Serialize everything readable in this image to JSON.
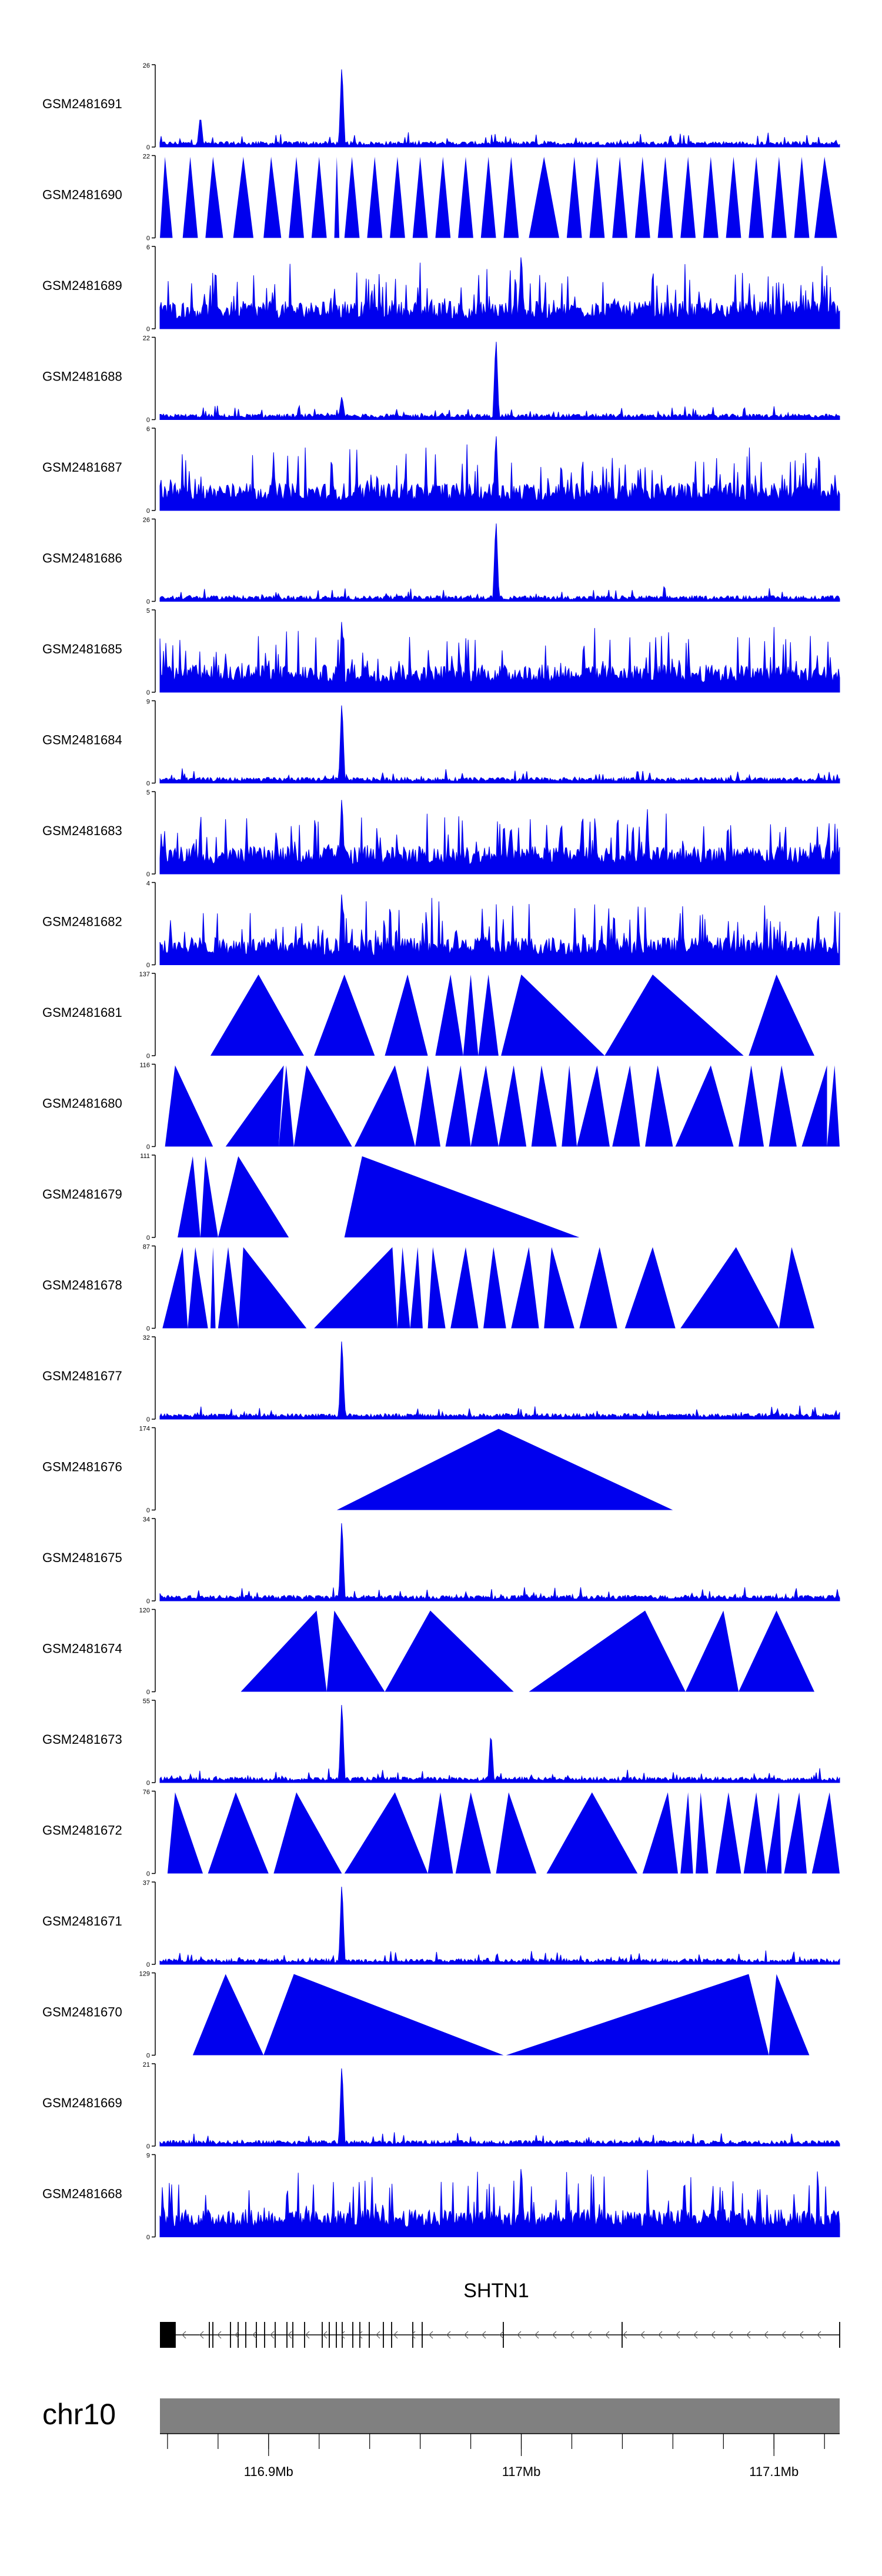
{
  "chart_data": {
    "type": "area",
    "chromosome": "chr10",
    "x_range_mb": [
      116.857,
      117.126
    ],
    "x_ticks": [
      {
        "value": 116.9,
        "label": "116.9Mb"
      },
      {
        "value": 117.0,
        "label": "117Mb"
      },
      {
        "value": 117.1,
        "label": "117.1Mb"
      }
    ],
    "colors": {
      "signal": "#0000ee",
      "ideogram": "#808080",
      "gene": "#000000",
      "axis": "#000000"
    },
    "gene": {
      "name": "SHTN1",
      "strand": "-",
      "start_mb": 116.857,
      "end_mb": 117.126
    },
    "tracks": [
      {
        "name": "GSM2481691",
        "ymax": 26,
        "style": "spiky",
        "peaks": [
          [
            116.929,
            1.0
          ],
          [
            116.873,
            0.35
          ]
        ]
      },
      {
        "name": "GSM2481690",
        "ymax": 22,
        "style": "triangles",
        "peaks": [
          [
            116.927,
            1.0
          ]
        ]
      },
      {
        "name": "GSM2481689",
        "ymax": 6,
        "style": "dense",
        "peaks": [
          [
            116.856,
            0.85
          ],
          [
            117.0,
            0.95
          ]
        ]
      },
      {
        "name": "GSM2481688",
        "ymax": 22,
        "style": "spiky",
        "peaks": [
          [
            116.99,
            1.0
          ],
          [
            116.929,
            0.25
          ]
        ]
      },
      {
        "name": "GSM2481687",
        "ymax": 6,
        "style": "dense",
        "peaks": [
          [
            116.99,
            0.95
          ]
        ]
      },
      {
        "name": "GSM2481686",
        "ymax": 26,
        "style": "spiky",
        "peaks": [
          [
            116.99,
            1.0
          ]
        ]
      },
      {
        "name": "GSM2481685",
        "ymax": 5,
        "style": "dense",
        "peaks": [
          [
            116.929,
            0.9
          ]
        ]
      },
      {
        "name": "GSM2481684",
        "ymax": 9,
        "style": "spiky",
        "peaks": [
          [
            116.929,
            1.0
          ]
        ]
      },
      {
        "name": "GSM2481683",
        "ymax": 5,
        "style": "dense",
        "peaks": [
          [
            116.929,
            0.95
          ]
        ]
      },
      {
        "name": "GSM2481682",
        "ymax": 4,
        "style": "dense",
        "peaks": [
          [
            116.929,
            0.9
          ]
        ]
      },
      {
        "name": "GSM2481681",
        "ymax": 137,
        "style": "triangles",
        "peaks": [
          [
            116.98,
            1.0
          ]
        ]
      },
      {
        "name": "GSM2481680",
        "ymax": 116,
        "style": "triangles",
        "peaks": [
          [
            117.124,
            1.0
          ]
        ]
      },
      {
        "name": "GSM2481679",
        "ymax": 111,
        "style": "triangles",
        "peaks": [
          [
            116.87,
            1.0
          ]
        ]
      },
      {
        "name": "GSM2481678",
        "ymax": 87,
        "style": "triangles",
        "peaks": [
          [
            116.871,
            1.0
          ]
        ]
      },
      {
        "name": "GSM2481677",
        "ymax": 32,
        "style": "spiky",
        "peaks": [
          [
            116.929,
            1.0
          ]
        ]
      },
      {
        "name": "GSM2481676",
        "ymax": 174,
        "style": "triangles",
        "peaks": [
          [
            116.991,
            1.0
          ]
        ]
      },
      {
        "name": "GSM2481675",
        "ymax": 34,
        "style": "spiky",
        "peaks": [
          [
            116.929,
            1.0
          ]
        ]
      },
      {
        "name": "GSM2481674",
        "ymax": 120,
        "style": "triangles",
        "peaks": [
          [
            116.92,
            1.0
          ]
        ]
      },
      {
        "name": "GSM2481673",
        "ymax": 55,
        "style": "spiky",
        "peaks": [
          [
            116.929,
            1.0
          ],
          [
            116.988,
            0.6
          ]
        ]
      },
      {
        "name": "GSM2481672",
        "ymax": 76,
        "style": "triangles",
        "peaks": [
          [
            117.126,
            1.0
          ]
        ]
      },
      {
        "name": "GSM2481671",
        "ymax": 37,
        "style": "spiky",
        "peaks": [
          [
            116.929,
            1.0
          ]
        ]
      },
      {
        "name": "GSM2481670",
        "ymax": 129,
        "style": "triangles",
        "peaks": [
          [
            116.91,
            1.0
          ]
        ]
      },
      {
        "name": "GSM2481669",
        "ymax": 21,
        "style": "spiky",
        "peaks": [
          [
            116.929,
            1.0
          ]
        ]
      },
      {
        "name": "GSM2481668",
        "ymax": 9,
        "style": "dense",
        "peaks": [
          [
            117.0,
            0.9
          ]
        ]
      }
    ],
    "shapes": {
      "GSM2481690": [
        [
          116.857,
          116.859,
          116.862
        ],
        [
          116.866,
          116.869,
          116.872
        ],
        [
          116.875,
          116.878,
          116.882
        ],
        [
          116.886,
          116.89,
          116.894
        ],
        [
          116.898,
          116.901,
          116.905
        ],
        [
          116.908,
          116.911,
          116.914
        ],
        [
          116.917,
          116.92,
          116.923
        ],
        [
          116.926,
          116.927,
          116.928
        ],
        [
          116.93,
          116.933,
          116.936
        ],
        [
          116.939,
          116.942,
          116.945
        ],
        [
          116.948,
          116.951,
          116.954
        ],
        [
          116.957,
          116.96,
          116.963
        ],
        [
          116.966,
          116.969,
          116.972
        ],
        [
          116.975,
          116.978,
          116.981
        ],
        [
          116.984,
          116.987,
          116.99
        ],
        [
          116.993,
          116.996,
          116.999
        ],
        [
          117.003,
          117.009,
          117.015
        ],
        [
          117.018,
          117.021,
          117.024
        ],
        [
          117.027,
          117.03,
          117.033
        ],
        [
          117.036,
          117.039,
          117.042
        ],
        [
          117.045,
          117.048,
          117.051
        ],
        [
          117.054,
          117.057,
          117.06
        ],
        [
          117.063,
          117.066,
          117.069
        ],
        [
          117.072,
          117.075,
          117.078
        ],
        [
          117.081,
          117.084,
          117.087
        ],
        [
          117.09,
          117.093,
          117.096
        ],
        [
          117.099,
          117.102,
          117.105
        ],
        [
          117.108,
          117.111,
          117.114
        ],
        [
          117.116,
          117.12,
          117.125
        ]
      ],
      "GSM2481681": [
        [
          116.877,
          116.896,
          116.914
        ],
        [
          116.918,
          116.93,
          116.942
        ],
        [
          116.946,
          116.955,
          116.963
        ],
        [
          116.966,
          116.972,
          116.977
        ],
        [
          116.977,
          116.98,
          116.983
        ],
        [
          116.983,
          116.987,
          116.991
        ],
        [
          116.992,
          117.0,
          117.033
        ],
        [
          117.033,
          117.052,
          117.088
        ],
        [
          117.09,
          117.101,
          117.116
        ]
      ],
      "GSM2481680": [
        [
          116.859,
          116.863,
          116.878
        ],
        [
          116.883,
          116.906,
          116.904
        ],
        [
          116.904,
          116.907,
          116.91
        ],
        [
          116.91,
          116.915,
          116.933
        ],
        [
          116.934,
          116.95,
          116.958
        ],
        [
          116.958,
          116.963,
          116.968
        ],
        [
          116.97,
          116.976,
          116.98
        ],
        [
          116.98,
          116.986,
          116.991
        ],
        [
          116.991,
          116.997,
          117.002
        ],
        [
          117.004,
          117.008,
          117.014
        ],
        [
          117.016,
          117.019,
          117.022
        ],
        [
          117.022,
          117.03,
          117.035
        ],
        [
          117.036,
          117.043,
          117.047
        ],
        [
          117.049,
          117.054,
          117.06
        ],
        [
          117.061,
          117.075,
          117.084
        ],
        [
          117.086,
          117.091,
          117.096
        ],
        [
          117.098,
          117.103,
          117.109
        ],
        [
          117.111,
          117.121,
          117.121
        ],
        [
          117.121,
          117.124,
          117.126
        ]
      ],
      "GSM2481679": [
        [
          116.864,
          116.87,
          116.873
        ],
        [
          116.873,
          116.875,
          116.88
        ],
        [
          116.88,
          116.888,
          116.908
        ],
        [
          116.93,
          116.937,
          117.023
        ]
      ],
      "GSM2481678": [
        [
          116.858,
          116.866,
          116.868
        ],
        [
          116.868,
          116.871,
          116.876
        ],
        [
          116.877,
          116.878,
          116.879
        ],
        [
          116.88,
          116.884,
          116.888
        ],
        [
          116.888,
          116.89,
          116.915
        ],
        [
          116.918,
          116.949,
          116.951
        ],
        [
          116.951,
          116.953,
          116.956
        ],
        [
          116.956,
          116.959,
          116.961
        ],
        [
          116.963,
          116.965,
          116.97
        ],
        [
          116.972,
          116.978,
          116.983
        ],
        [
          116.985,
          116.989,
          116.994
        ],
        [
          116.996,
          117.003,
          117.007
        ],
        [
          117.009,
          117.012,
          117.021
        ],
        [
          117.023,
          117.031,
          117.038
        ],
        [
          117.041,
          117.052,
          117.061
        ],
        [
          117.063,
          117.085,
          117.102
        ],
        [
          117.102,
          117.107,
          117.116
        ]
      ],
      "GSM2481676": [
        [
          116.927,
          116.991,
          117.06
        ]
      ],
      "GSM2481674": [
        [
          116.889,
          116.919,
          116.923
        ],
        [
          116.923,
          116.926,
          116.946
        ],
        [
          116.946,
          116.964,
          116.997
        ],
        [
          117.003,
          117.049,
          117.065
        ],
        [
          117.065,
          117.08,
          117.086
        ],
        [
          117.086,
          117.101,
          117.116
        ]
      ],
      "GSM2481672": [
        [
          116.86,
          116.863,
          116.874
        ],
        [
          116.876,
          116.887,
          116.9
        ],
        [
          116.902,
          116.911,
          116.929
        ],
        [
          116.93,
          116.95,
          116.963
        ],
        [
          116.963,
          116.968,
          116.973
        ],
        [
          116.974,
          116.98,
          116.988
        ],
        [
          116.99,
          116.995,
          117.006
        ],
        [
          117.01,
          117.028,
          117.046
        ],
        [
          117.048,
          117.058,
          117.062
        ],
        [
          117.063,
          117.066,
          117.068
        ],
        [
          117.069,
          117.071,
          117.074
        ],
        [
          117.077,
          117.082,
          117.087
        ],
        [
          117.088,
          117.093,
          117.097
        ],
        [
          117.097,
          117.102,
          117.103
        ],
        [
          117.104,
          117.11,
          117.113
        ],
        [
          117.115,
          117.122,
          117.126
        ]
      ],
      "GSM2481670": [
        [
          116.87,
          116.883,
          116.898
        ],
        [
          116.898,
          116.91,
          116.993
        ],
        [
          116.994,
          117.09,
          117.098
        ],
        [
          117.098,
          117.101,
          117.114
        ]
      ]
    }
  }
}
